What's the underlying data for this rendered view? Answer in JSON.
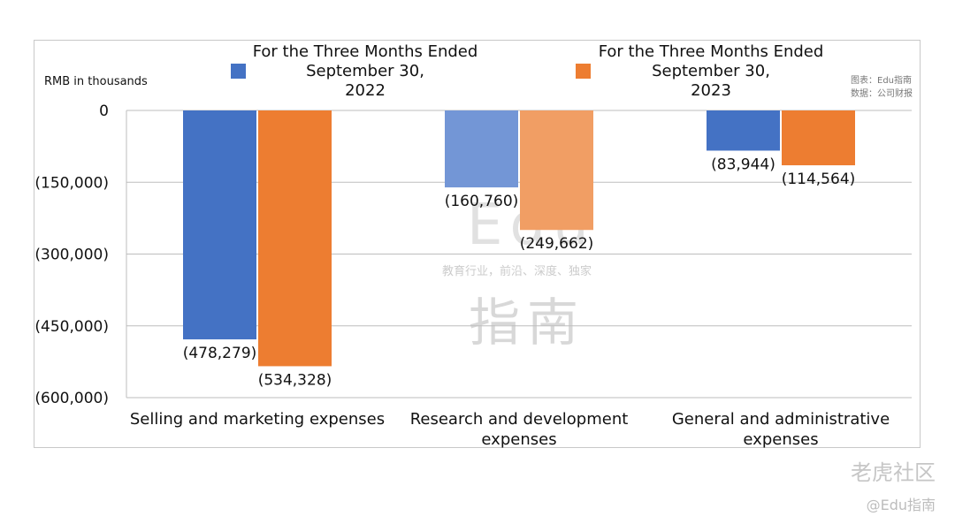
{
  "unit_label": "RMB in thousands",
  "credit": {
    "line1": "图表：Edu指南",
    "line2": "数据：公司财报"
  },
  "watermark": {
    "edu": "Edu",
    "tagline": "教育行业，前沿、深度、独家",
    "name": "指南"
  },
  "footer": {
    "logo": "老虎社区",
    "handle": "@Edu指南"
  },
  "colors": {
    "series1": "#4472c4",
    "series2": "#ed7d31",
    "series1_light": "#7396d6",
    "series2_light": "#f19e64",
    "grid": "#bdbdbd"
  },
  "chart_data": {
    "type": "bar",
    "categories": [
      "Selling and marketing expenses",
      "Research and development expenses",
      "General and administrative expenses"
    ],
    "series": [
      {
        "name": "For the Three Months Ended September 30, 2022",
        "values": [
          -478279,
          -160760,
          -83944
        ],
        "labels": [
          "(478,279)",
          "(160,760)",
          "(83,944)"
        ]
      },
      {
        "name": "For the Three Months Ended September 30, 2023",
        "values": [
          -534328,
          -249662,
          -114564
        ],
        "labels": [
          "(534,328)",
          "(249,662)",
          "(114,564)"
        ]
      }
    ],
    "ylabel": "RMB in thousands",
    "ylim": [
      -600000,
      0
    ],
    "yticks": [
      0,
      -150000,
      -300000,
      -450000,
      -600000
    ],
    "ytick_labels": [
      "0",
      "(150,000)",
      "(300,000)",
      "(450,000)",
      "(600,000)"
    ],
    "grid": true,
    "legend": "top"
  }
}
